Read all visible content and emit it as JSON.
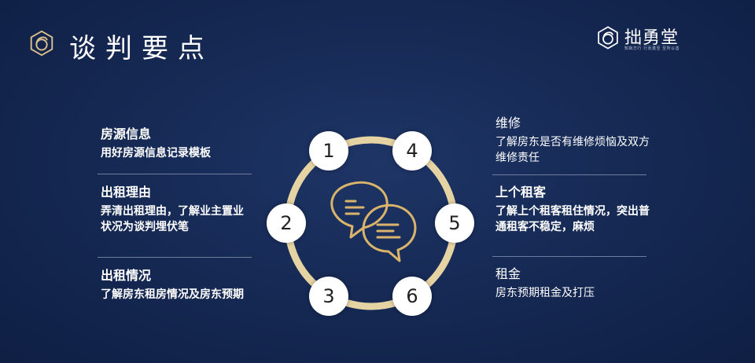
{
  "header": {
    "title": "谈判要点"
  },
  "brand": {
    "name": "拙勇堂",
    "tagline": "知拙方行 行而勇至 至所以善"
  },
  "left_items": [
    {
      "title": "房源信息",
      "desc": "用好房源信息记录模板"
    },
    {
      "title": "出租理由",
      "desc": "弄清出租理由，了解业主置业状况为谈判埋伏笔"
    },
    {
      "title": "出租情况",
      "desc": "了解房东租房情况及房东预期"
    }
  ],
  "right_items": [
    {
      "title": "维修",
      "desc": "了解房东是否有维修烦恼及双方维修责任"
    },
    {
      "title": "上个租客",
      "desc": "了解上个租客租住情况，突出普通租客不稳定，麻烦"
    },
    {
      "title": "租金",
      "desc": "房东预期租金及打压"
    }
  ],
  "nodes": [
    "1",
    "2",
    "3",
    "4",
    "5",
    "6"
  ],
  "colors": {
    "gold": "#d9c08c",
    "ring": "#e6d3a3",
    "bg": "#162a55"
  },
  "icons": {
    "title": "brand-logo-icon",
    "center": "chat-bubbles-icon"
  }
}
